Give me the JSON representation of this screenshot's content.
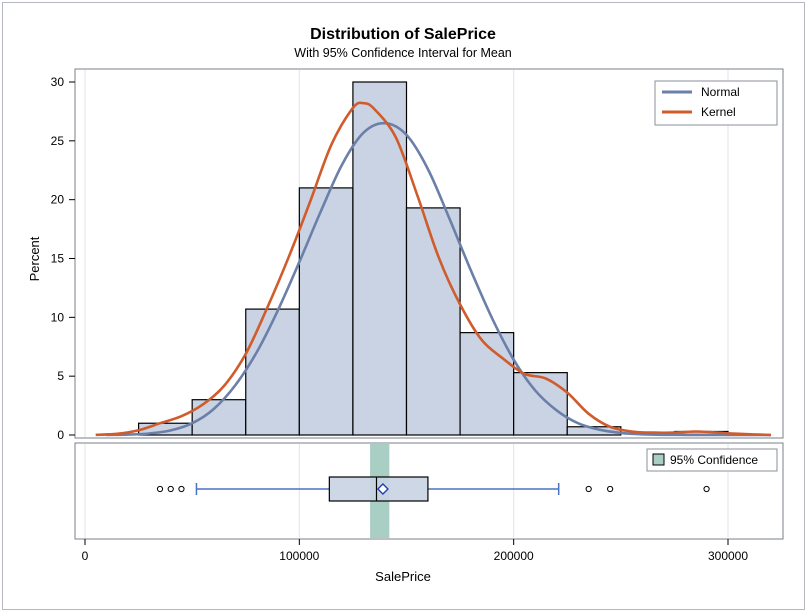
{
  "chart_data": {
    "type": "bar",
    "title": "Distribution of SalePrice",
    "subtitle": "With 95% Confidence Interval for Mean",
    "xlabel": "SalePrice",
    "ylabel": "Percent",
    "xlim": [
      0,
      320000
    ],
    "ylim": [
      0,
      30
    ],
    "x_ticks": [
      0,
      100000,
      200000,
      300000
    ],
    "x_tick_labels": [
      "0",
      "100000",
      "200000",
      "300000"
    ],
    "y_ticks": [
      0,
      5,
      10,
      15,
      20,
      25,
      30
    ],
    "grid": true,
    "histogram": {
      "bin_width": 25000,
      "bins": [
        {
          "start": 25000,
          "value": 1.0
        },
        {
          "start": 50000,
          "value": 3.0
        },
        {
          "start": 75000,
          "value": 10.7
        },
        {
          "start": 100000,
          "value": 21.0
        },
        {
          "start": 125000,
          "value": 30.0
        },
        {
          "start": 150000,
          "value": 19.3
        },
        {
          "start": 175000,
          "value": 8.7
        },
        {
          "start": 200000,
          "value": 5.3
        },
        {
          "start": 225000,
          "value": 0.7
        },
        {
          "start": 250000,
          "value": 0.0
        },
        {
          "start": 275000,
          "value": 0.3
        }
      ],
      "fill": "#c9d3e3",
      "stroke": "#000000"
    },
    "series": [
      {
        "name": "Normal",
        "color": "#6b7fa8",
        "x": [
          10000,
          20000,
          30000,
          40000,
          50000,
          60000,
          70000,
          80000,
          90000,
          100000,
          110000,
          120000,
          130000,
          140000,
          150000,
          160000,
          170000,
          180000,
          190000,
          200000,
          210000,
          220000,
          230000,
          240000,
          250000,
          260000,
          270000,
          280000,
          290000,
          300000,
          310000,
          320000
        ],
        "values": [
          0.01,
          0.03,
          0.13,
          0.39,
          1.0,
          2.2,
          4.2,
          7.0,
          10.6,
          14.7,
          19.0,
          23.0,
          25.7,
          26.5,
          25.5,
          22.6,
          18.4,
          14.0,
          9.9,
          6.4,
          3.8,
          2.1,
          1.0,
          0.45,
          0.18,
          0.06,
          0.02,
          0.01,
          0.0,
          0.0,
          0.0,
          0.0
        ]
      },
      {
        "name": "Kernel",
        "color": "#d05b2b",
        "x": [
          5000,
          15000,
          25000,
          35000,
          45000,
          55000,
          65000,
          75000,
          85000,
          95000,
          105000,
          115000,
          125000,
          130000,
          135000,
          145000,
          155000,
          165000,
          175000,
          185000,
          195000,
          205000,
          215000,
          225000,
          235000,
          245000,
          255000,
          265000,
          275000,
          285000,
          295000,
          305000,
          320000
        ],
        "values": [
          0.02,
          0.1,
          0.4,
          1.0,
          1.6,
          2.6,
          4.2,
          6.9,
          10.8,
          15.1,
          19.8,
          24.7,
          27.8,
          28.2,
          27.7,
          25.3,
          20.4,
          15.1,
          11.1,
          8.1,
          6.5,
          5.2,
          4.8,
          3.6,
          1.8,
          0.7,
          0.3,
          0.2,
          0.2,
          0.3,
          0.2,
          0.1,
          0.0
        ]
      }
    ],
    "legend": {
      "placement": "top-right",
      "entries": [
        "Normal",
        "Kernel"
      ]
    },
    "boxplot": {
      "q1": 114000,
      "median": 136000,
      "q3": 160000,
      "mean": 139000,
      "whisker_low": 52000,
      "whisker_high": 221000,
      "outliers": [
        35000,
        40000,
        45000,
        235000,
        245000,
        290000
      ],
      "ci_low": 133000,
      "ci_high": 142000,
      "box_fill": "#c9d3e3",
      "line_color": "#4a72c4",
      "ci_color": "#a9cfc5",
      "mean_marker_color": "#2042a8",
      "legend_label": "95% Confidence"
    }
  }
}
